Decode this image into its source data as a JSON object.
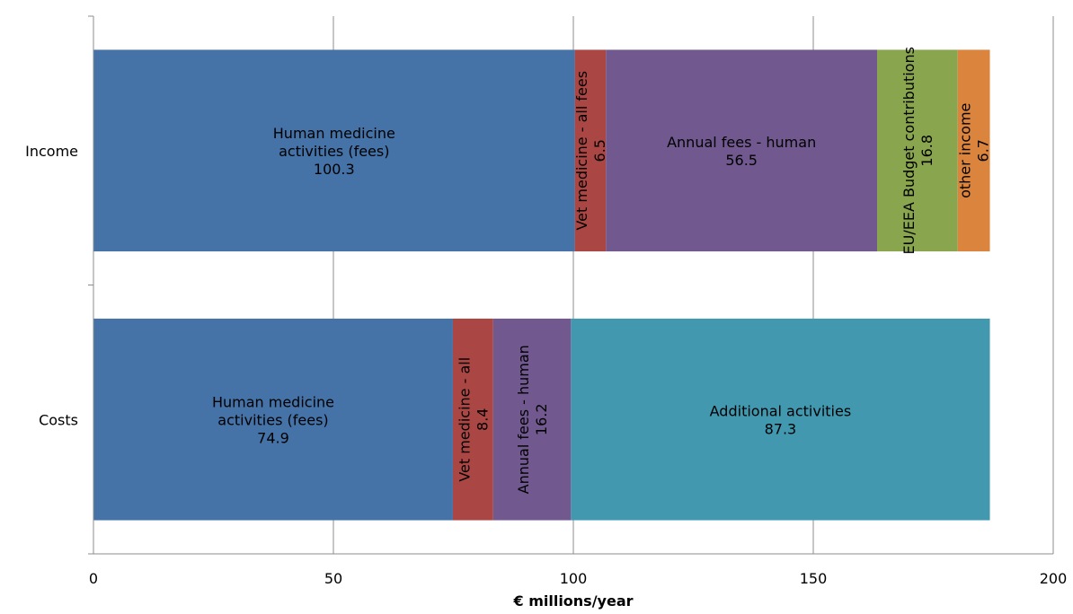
{
  "chart_data": {
    "type": "bar",
    "orientation": "horizontal",
    "stacked": true,
    "categories": [
      "Income",
      "Costs"
    ],
    "xlabel": "€ millions/year",
    "xlim": [
      0,
      200
    ],
    "x_ticks": [
      0,
      50,
      100,
      150,
      200
    ],
    "grid": "vertical",
    "bars": [
      {
        "category": "Income",
        "segments": [
          {
            "label": "Human medicine activities (fees)",
            "lines": [
              "Human medicine",
              "activities (fees)"
            ],
            "value": 100.3,
            "value_text": "100.3",
            "color": "#4572A7",
            "text_orientation": "horizontal"
          },
          {
            "label": "Vet medicine - all fees",
            "lines": [
              "Vet medicine  - all fees"
            ],
            "value": 6.5,
            "value_text": "6.5",
            "color": "#AA4643",
            "text_orientation": "vertical"
          },
          {
            "label": "Annual fees - human",
            "lines": [
              "Annual fees - human"
            ],
            "value": 56.5,
            "value_text": "56.5",
            "color": "#71588F",
            "text_orientation": "horizontal"
          },
          {
            "label": "EU/EEA Budget contributions",
            "lines": [
              "EU/EEA Budget contributions"
            ],
            "value": 16.8,
            "value_text": "16.8",
            "color": "#89A54E",
            "text_orientation": "vertical"
          },
          {
            "label": "other income",
            "lines": [
              "other income"
            ],
            "value": 6.7,
            "value_text": "6.7",
            "color": "#DB843D",
            "text_orientation": "vertical"
          }
        ]
      },
      {
        "category": "Costs",
        "segments": [
          {
            "label": "Human medicine activities (fees)",
            "lines": [
              "Human medicine",
              "activities (fees)"
            ],
            "value": 74.9,
            "value_text": "74.9",
            "color": "#4572A7",
            "text_orientation": "horizontal"
          },
          {
            "label": "Vet medicine - all",
            "lines": [
              "Vet medicine  - all"
            ],
            "value": 8.4,
            "value_text": "8.4",
            "color": "#AA4643",
            "text_orientation": "vertical"
          },
          {
            "label": "Annual fees - human",
            "lines": [
              "Annual fees - human"
            ],
            "value": 16.2,
            "value_text": "16.2",
            "color": "#71588F",
            "text_orientation": "vertical"
          },
          {
            "label": "Additional activities",
            "lines": [
              "Additional activities"
            ],
            "value": 87.3,
            "value_text": "87.3",
            "color": "#4198AF",
            "text_orientation": "horizontal"
          }
        ]
      }
    ]
  }
}
